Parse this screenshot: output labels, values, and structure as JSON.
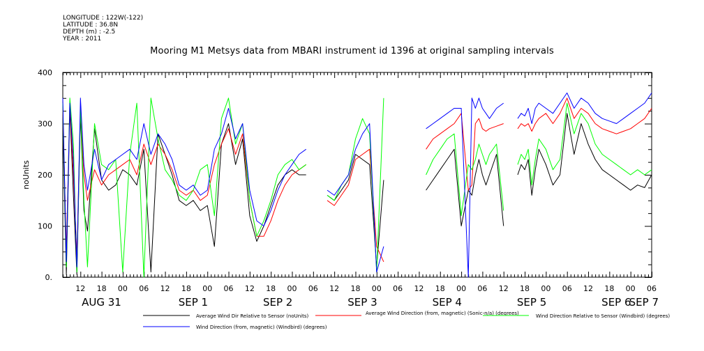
{
  "metadata": {
    "longitude": "LONGITUDE : 122W(-122)",
    "latitude": "LATITUDE : 36.8N",
    "depth": "DEPTH (m) : -2.5",
    "year": "YEAR : 2011"
  },
  "chart_data": {
    "type": "line",
    "title": "Mooring M1 Metsys data from MBARI instrument id 1396 at original sampling intervals",
    "ylabel": "noUnits",
    "xlabel": "",
    "ylim": [
      0,
      400
    ],
    "y_ticks": [
      0,
      100,
      200,
      300,
      400
    ],
    "x_unit": "hours since 2011-08-31 00:00",
    "xlim": [
      7,
      174
    ],
    "hour_tick_labels": [
      "12",
      "18",
      "00",
      "06",
      "12",
      "18",
      "00",
      "06",
      "12",
      "18",
      "00",
      "06",
      "12",
      "18",
      "00",
      "06",
      "12",
      "18",
      "00",
      "06",
      "12",
      "18",
      "00",
      "06",
      "12",
      "18",
      "00",
      "06"
    ],
    "day_labels": [
      "AUG 31",
      "SEP  1",
      "SEP  2",
      "SEP  3",
      "SEP  4",
      "SEP  5",
      "SEP  6",
      "SEP  7"
    ],
    "grid": false,
    "legend_position": "bottom",
    "series": [
      {
        "name": "Average Wind Dir Relative to Sensor (noUnits)",
        "color": "#000000",
        "x": [
          7,
          8,
          9,
          10,
          11,
          12,
          13,
          14,
          16,
          18,
          20,
          22,
          24,
          26,
          28,
          30,
          32,
          34,
          36,
          38,
          40,
          42,
          44,
          46,
          48,
          50,
          52,
          54,
          56,
          58,
          60,
          62,
          64,
          66,
          68,
          70,
          72,
          74,
          76,
          78,
          80,
          81,
          82,
          84,
          86,
          88,
          90,
          92,
          94,
          96,
          98,
          99,
          100,
          101,
          102,
          103,
          104,
          106,
          108,
          110,
          112,
          114,
          116,
          118,
          120,
          122,
          123,
          124,
          125,
          126,
          127,
          128,
          130,
          132,
          133,
          134,
          135,
          136,
          137,
          138,
          139,
          140,
          141,
          142,
          144,
          146,
          148,
          150,
          152,
          154,
          156,
          158,
          160,
          162,
          164,
          166,
          168,
          170,
          172,
          174
        ],
        "y": [
          300,
          5,
          330,
          160,
          5,
          320,
          130,
          90,
          290,
          190,
          170,
          180,
          210,
          200,
          180,
          250,
          10,
          280,
          240,
          200,
          150,
          140,
          150,
          130,
          140,
          60,
          260,
          300,
          220,
          270,
          120,
          70,
          100,
          140,
          180,
          200,
          210,
          200,
          200,
          null,
          null,
          null,
          160,
          150,
          170,
          190,
          240,
          230,
          220,
          20,
          190,
          null,
          null,
          null,
          null,
          null,
          null,
          null,
          null,
          170,
          190,
          210,
          230,
          250,
          100,
          170,
          160,
          200,
          230,
          200,
          180,
          200,
          240,
          100,
          null,
          null,
          null,
          200,
          220,
          210,
          230,
          160,
          210,
          250,
          220,
          180,
          200,
          320,
          240,
          300,
          260,
          230,
          210,
          200,
          190,
          180,
          170,
          180,
          175,
          200
        ]
      },
      {
        "name": "Average Wind Direction (from, magnetic) (Sonic-n/a) (degrees)",
        "color": "#ff0000",
        "x": [
          7,
          8,
          9,
          10,
          11,
          12,
          13,
          14,
          16,
          18,
          20,
          22,
          24,
          26,
          28,
          30,
          32,
          34,
          36,
          38,
          40,
          42,
          44,
          46,
          48,
          50,
          52,
          54,
          56,
          58,
          60,
          62,
          64,
          66,
          68,
          70,
          72,
          74,
          76,
          78,
          80,
          81,
          82,
          84,
          86,
          88,
          90,
          92,
          94,
          96,
          98,
          99,
          100,
          101,
          102,
          103,
          104,
          106,
          108,
          110,
          112,
          114,
          116,
          118,
          120,
          122,
          123,
          124,
          125,
          126,
          127,
          128,
          130,
          132,
          133,
          134,
          135,
          136,
          137,
          138,
          139,
          140,
          141,
          142,
          144,
          146,
          148,
          150,
          152,
          154,
          156,
          158,
          160,
          162,
          164,
          166,
          168,
          170,
          172,
          174
        ],
        "y": [
          330,
          50,
          340,
          200,
          40,
          330,
          200,
          150,
          210,
          180,
          200,
          210,
          220,
          230,
          200,
          260,
          220,
          260,
          240,
          210,
          170,
          160,
          170,
          150,
          160,
          220,
          260,
          290,
          240,
          280,
          150,
          80,
          80,
          110,
          150,
          180,
          200,
          210,
          220,
          null,
          null,
          null,
          150,
          140,
          160,
          180,
          230,
          240,
          250,
          60,
          30,
          null,
          null,
          null,
          null,
          null,
          null,
          null,
          null,
          250,
          270,
          280,
          290,
          300,
          320,
          170,
          180,
          300,
          310,
          290,
          285,
          290,
          295,
          300,
          null,
          null,
          null,
          290,
          300,
          295,
          300,
          285,
          300,
          310,
          320,
          300,
          320,
          350,
          310,
          330,
          320,
          300,
          290,
          285,
          280,
          285,
          290,
          300,
          310,
          330
        ]
      },
      {
        "name": "Wind Direction Relative to Sensor (Windbird) (degrees)",
        "color": "#00ff00",
        "x": [
          7,
          8,
          9,
          10,
          11,
          12,
          13,
          14,
          16,
          18,
          20,
          22,
          24,
          26,
          28,
          30,
          32,
          34,
          36,
          38,
          40,
          42,
          44,
          46,
          48,
          50,
          52,
          54,
          56,
          58,
          60,
          62,
          64,
          66,
          68,
          70,
          72,
          74,
          76,
          78,
          80,
          81,
          82,
          84,
          86,
          88,
          90,
          92,
          94,
          96,
          98,
          99,
          100,
          101,
          102,
          103,
          104,
          106,
          108,
          110,
          112,
          114,
          116,
          118,
          120,
          122,
          123,
          124,
          125,
          126,
          127,
          128,
          130,
          132,
          133,
          134,
          135,
          136,
          137,
          138,
          139,
          140,
          141,
          142,
          144,
          146,
          148,
          150,
          152,
          154,
          156,
          158,
          160,
          162,
          164,
          166,
          168,
          170,
          172,
          174
        ],
        "y": [
          340,
          20,
          350,
          260,
          10,
          330,
          150,
          20,
          300,
          220,
          210,
          230,
          10,
          240,
          340,
          0,
          350,
          270,
          210,
          190,
          160,
          150,
          170,
          210,
          220,
          120,
          310,
          350,
          260,
          300,
          150,
          80,
          110,
          150,
          200,
          220,
          230,
          210,
          220,
          null,
          null,
          null,
          160,
          150,
          180,
          200,
          270,
          310,
          280,
          10,
          350,
          null,
          null,
          null,
          null,
          null,
          null,
          null,
          null,
          200,
          230,
          250,
          270,
          280,
          120,
          220,
          210,
          230,
          260,
          240,
          220,
          240,
          260,
          130,
          null,
          null,
          null,
          220,
          240,
          230,
          250,
          180,
          230,
          270,
          250,
          210,
          230,
          340,
          280,
          320,
          300,
          260,
          240,
          230,
          220,
          210,
          200,
          210,
          200,
          210
        ]
      },
      {
        "name": "Wind Direction (from, magnetic) (Windbird) (degrees)",
        "color": "#0000ff",
        "x": [
          7,
          8,
          9,
          10,
          11,
          12,
          13,
          14,
          16,
          18,
          20,
          22,
          24,
          26,
          28,
          30,
          32,
          34,
          36,
          38,
          40,
          42,
          44,
          46,
          48,
          50,
          52,
          54,
          56,
          58,
          60,
          62,
          64,
          66,
          68,
          70,
          72,
          74,
          76,
          78,
          80,
          81,
          82,
          84,
          86,
          88,
          90,
          92,
          94,
          96,
          98,
          99,
          100,
          101,
          102,
          103,
          104,
          106,
          108,
          110,
          112,
          114,
          116,
          118,
          120,
          122,
          123,
          124,
          125,
          126,
          127,
          128,
          130,
          132,
          133,
          134,
          135,
          136,
          137,
          138,
          139,
          140,
          141,
          142,
          144,
          146,
          148,
          150,
          152,
          154,
          156,
          158,
          160,
          162,
          164,
          166,
          168,
          170,
          172,
          174
        ],
        "y": [
          350,
          30,
          340,
          230,
          20,
          350,
          220,
          170,
          250,
          190,
          220,
          230,
          240,
          250,
          230,
          300,
          240,
          280,
          260,
          230,
          180,
          170,
          180,
          160,
          170,
          250,
          280,
          330,
          270,
          300,
          170,
          110,
          100,
          130,
          170,
          200,
          220,
          240,
          250,
          null,
          null,
          null,
          170,
          160,
          180,
          200,
          250,
          280,
          300,
          10,
          60,
          null,
          null,
          null,
          null,
          null,
          null,
          null,
          null,
          290,
          300,
          310,
          320,
          330,
          330,
          0,
          350,
          330,
          350,
          330,
          320,
          310,
          330,
          340,
          null,
          null,
          null,
          310,
          320,
          315,
          330,
          300,
          330,
          340,
          330,
          320,
          340,
          360,
          330,
          350,
          340,
          320,
          310,
          305,
          300,
          310,
          320,
          330,
          340,
          360
        ]
      }
    ]
  }
}
